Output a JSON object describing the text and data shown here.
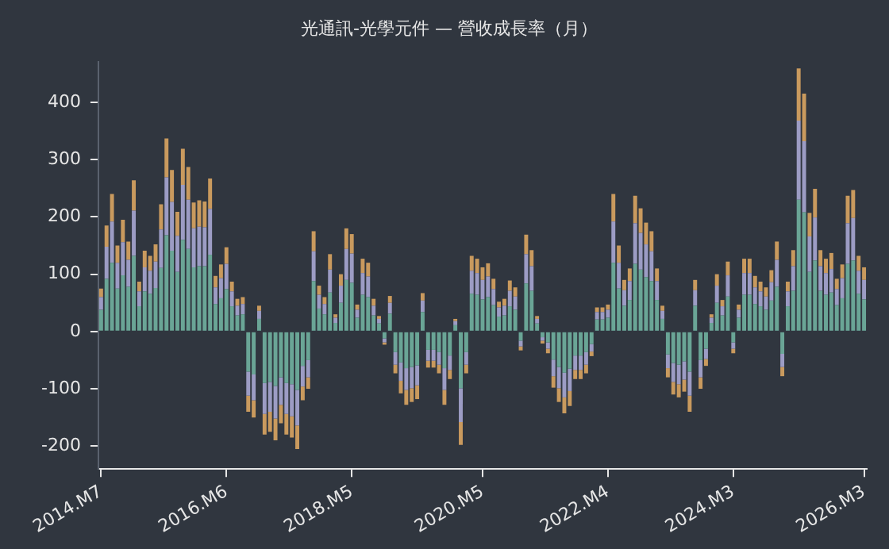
{
  "chart_data": {
    "type": "bar",
    "title": "光通訊-光學元件 — 營收成長率（月）",
    "stacked": true,
    "categories": [
      "2014.M7",
      null,
      null,
      null,
      null,
      null,
      null,
      null,
      null,
      null,
      null,
      null,
      null,
      null,
      null,
      null,
      null,
      null,
      null,
      null,
      null,
      null,
      null,
      "2016.M6",
      null,
      null,
      null,
      null,
      null,
      null,
      null,
      null,
      null,
      null,
      null,
      null,
      null,
      null,
      null,
      null,
      null,
      null,
      null,
      null,
      null,
      null,
      "2018.M5",
      null,
      null,
      null,
      null,
      null,
      null,
      null,
      null,
      null,
      null,
      null,
      null,
      null,
      null,
      null,
      null,
      null,
      null,
      null,
      null,
      null,
      null,
      null,
      "2020.M5",
      null,
      null,
      null,
      null,
      null,
      null,
      null,
      null,
      null,
      null,
      null,
      null,
      null,
      null,
      null,
      null,
      null,
      null,
      null,
      null,
      null,
      null,
      "2022.M4",
      null,
      null,
      null,
      null,
      null,
      null,
      null,
      null,
      null,
      null,
      null,
      null,
      null,
      null,
      null,
      null,
      null,
      null,
      null,
      null,
      null,
      null,
      "2024.M3",
      null,
      null,
      null,
      null,
      null,
      null,
      null,
      null,
      null,
      null,
      null,
      null,
      null,
      null,
      null,
      null,
      null,
      null,
      null,
      null,
      null,
      null,
      null,
      "2026.M3"
    ],
    "series": [
      {
        "color": "#6aa596",
        "values": [
          38,
          92,
          120,
          75,
          98,
          78,
          132,
          44,
          70,
          66,
          76,
          111,
          168,
          141,
          104,
          160,
          144,
          112,
          114,
          114,
          134,
          48,
          58,
          74,
          44,
          28,
          30,
          -70,
          -75,
          22,
          -90,
          -88,
          -95,
          -80,
          -90,
          -92,
          -102,
          -60,
          -50,
          88,
          40,
          30,
          68,
          15,
          50,
          90,
          85,
          24,
          64,
          60,
          28,
          14,
          -12,
          31,
          -36,
          -54,
          -64,
          -62,
          -59,
          34,
          -32,
          -32,
          -36,
          -64,
          -42,
          11,
          -99,
          -36,
          66,
          64,
          56,
          60,
          46,
          26,
          28,
          44,
          38,
          -16,
          84,
          71,
          14,
          -10,
          -19,
          -49,
          -62,
          -72,
          -65,
          -42,
          -42,
          -36,
          -22,
          21,
          21,
          24,
          120,
          75,
          45,
          55,
          118,
          108,
          95,
          88,
          55,
          22,
          -40,
          -55,
          -58,
          -52,
          -70,
          45,
          -50,
          -30,
          15,
          50,
          28,
          61,
          -19,
          24,
          64,
          64,
          48,
          44,
          38,
          54,
          78,
          -39,
          44,
          71,
          230,
          208,
          104,
          124,
          71,
          64,
          68,
          46,
          58,
          118,
          124,
          66,
          56
        ]
      },
      {
        "color": "#9c9cc4",
        "values": [
          22,
          56,
          72,
          45,
          58,
          47,
          79,
          26,
          42,
          40,
          46,
          67,
          101,
          85,
          63,
          96,
          86,
          68,
          69,
          68,
          80,
          29,
          35,
          44,
          26,
          17,
          18,
          -42,
          -45,
          14,
          -54,
          -52,
          -57,
          -48,
          -54,
          -56,
          -62,
          -36,
          -30,
          52,
          24,
          18,
          40,
          9,
          30,
          54,
          51,
          14,
          38,
          36,
          17,
          8,
          -7,
          19,
          -22,
          -32,
          -38,
          -37,
          -35,
          20,
          -19,
          -19,
          -22,
          -38,
          -25,
          7,
          -59,
          -22,
          40,
          38,
          34,
          36,
          28,
          16,
          17,
          27,
          23,
          -10,
          51,
          43,
          8,
          -6,
          -11,
          -29,
          -37,
          -43,
          -39,
          -25,
          -25,
          -22,
          -13,
          13,
          13,
          14,
          72,
          45,
          27,
          33,
          71,
          64,
          57,
          52,
          33,
          14,
          -24,
          -33,
          -34,
          -32,
          -42,
          27,
          -30,
          -18,
          9,
          30,
          16,
          37,
          -11,
          14,
          38,
          38,
          29,
          26,
          23,
          32,
          47,
          -23,
          26,
          43,
          138,
          124,
          62,
          75,
          43,
          38,
          41,
          28,
          35,
          71,
          74,
          40,
          34
        ]
      },
      {
        "color": "#c99a5e",
        "values": [
          15,
          37,
          48,
          30,
          39,
          32,
          53,
          17,
          29,
          26,
          30,
          44,
          68,
          56,
          42,
          63,
          57,
          45,
          46,
          45,
          53,
          20,
          24,
          29,
          17,
          12,
          12,
          -28,
          -30,
          9,
          -36,
          -35,
          -38,
          -32,
          -36,
          -37,
          -41,
          -24,
          -20,
          35,
          16,
          12,
          27,
          6,
          20,
          36,
          34,
          9,
          25,
          24,
          12,
          5,
          -4,
          12,
          -15,
          -22,
          -26,
          -24,
          -24,
          13,
          -12,
          -12,
          -15,
          -26,
          -16,
          4,
          -40,
          -15,
          26,
          25,
          22,
          23,
          18,
          10,
          12,
          18,
          16,
          -7,
          34,
          28,
          5,
          -5,
          -8,
          -20,
          -24,
          -28,
          -26,
          -16,
          -16,
          -15,
          -8,
          8,
          8,
          9,
          48,
          30,
          18,
          22,
          48,
          43,
          38,
          35,
          22,
          9,
          -16,
          -22,
          -23,
          -21,
          -28,
          18,
          -20,
          -12,
          6,
          20,
          11,
          24,
          -8,
          9,
          25,
          25,
          20,
          17,
          16,
          21,
          32,
          -16,
          17,
          28,
          91,
          83,
          41,
          50,
          28,
          25,
          28,
          18,
          24,
          48,
          49,
          26,
          22
        ]
      }
    ],
    "ylim": [
      -240,
      470
    ],
    "yticks": [
      -200,
      -100,
      0,
      100,
      200,
      300,
      400
    ]
  }
}
